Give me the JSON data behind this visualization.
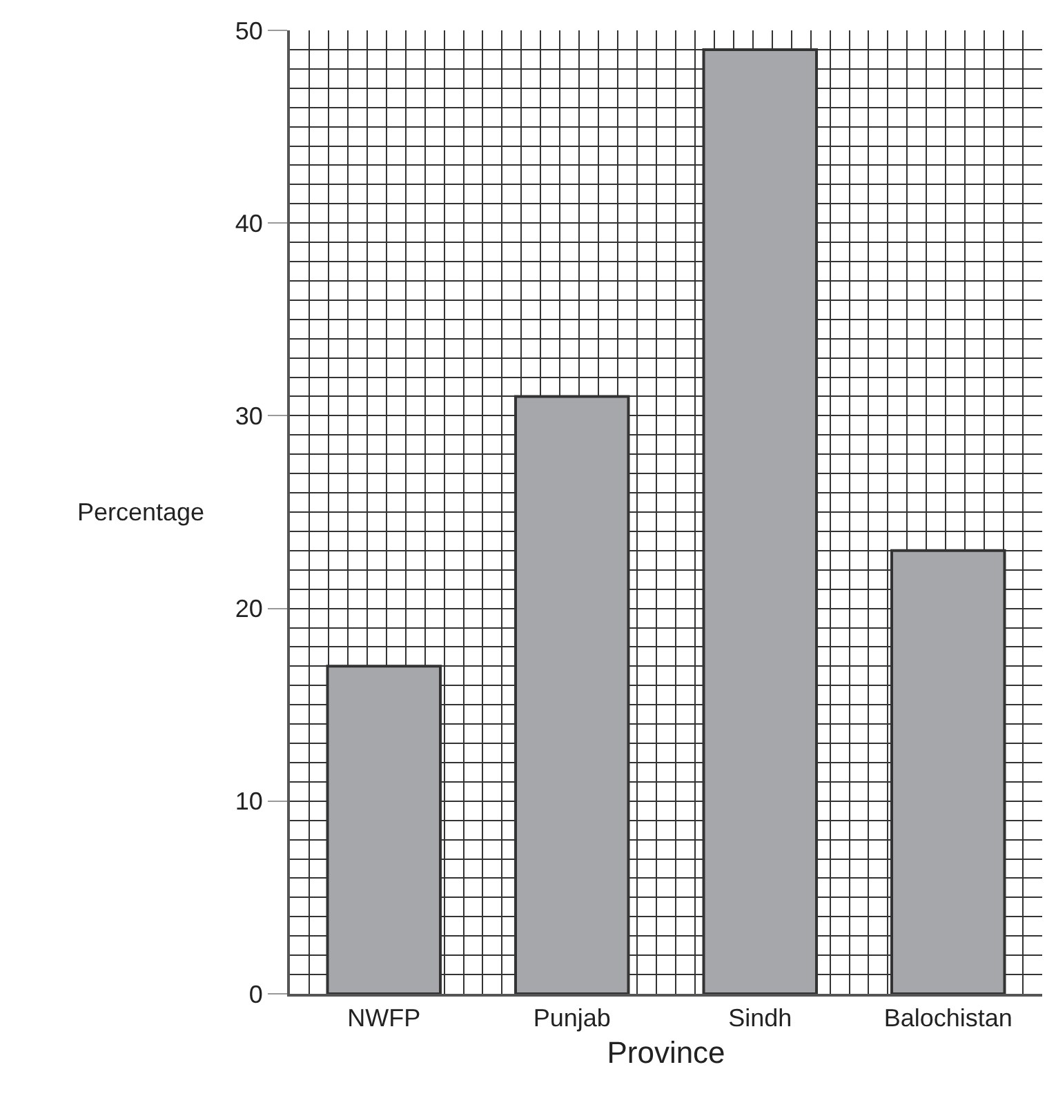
{
  "chart_data": {
    "type": "bar",
    "xlabel": "Province",
    "ylabel": "Percentage",
    "categories": [
      "NWFP",
      "Punjab",
      "Sindh",
      "Balochistan"
    ],
    "values": [
      17,
      31,
      49,
      23
    ],
    "color": "#a6a7ab",
    "ylim": [
      0,
      50
    ],
    "yticks": [
      0,
      10,
      20,
      30,
      40,
      50
    ],
    "grid": true
  }
}
